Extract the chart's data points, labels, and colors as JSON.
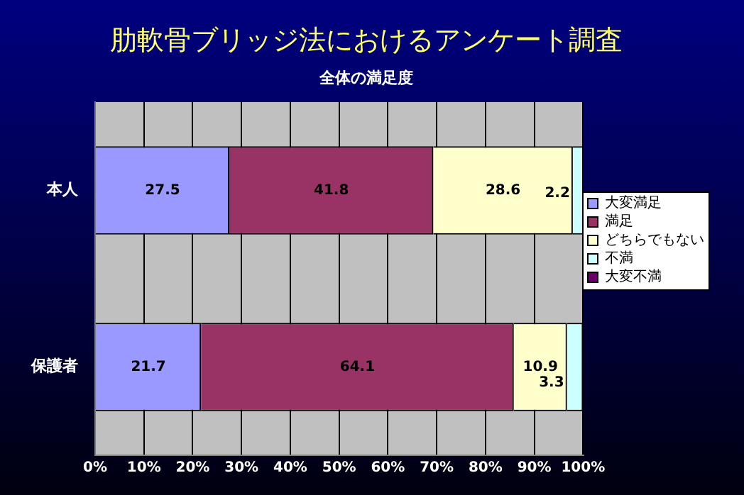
{
  "chart_data": {
    "type": "bar",
    "orientation": "horizontal",
    "stacked": true,
    "title": "肋軟骨ブリッジ法におけるアンケート調査",
    "subtitle": "全体の満足度",
    "categories": [
      "本人",
      "保護者"
    ],
    "series": [
      {
        "name": "大変満足",
        "color": "#9999ff",
        "values": [
          27.5,
          21.7
        ],
        "value_labels": [
          "27.5",
          "21.7"
        ]
      },
      {
        "name": "満足",
        "color": "#993366",
        "values": [
          41.8,
          64.1
        ],
        "value_labels": [
          "41.8",
          "64.1"
        ]
      },
      {
        "name": "どちらでもない",
        "color": "#ffffcc",
        "values": [
          28.6,
          10.9
        ],
        "value_labels": [
          "28.6",
          "10.9"
        ]
      },
      {
        "name": "不満",
        "color": "#ccffff",
        "values": [
          2.2,
          3.3
        ],
        "value_labels": [
          "2.2",
          "3.3"
        ]
      },
      {
        "name": "大変不満",
        "color": "#660066",
        "values": [
          null,
          null
        ]
      }
    ],
    "xlim": [
      0,
      100.1
    ],
    "xticks": [
      {
        "value": 0,
        "label": "0%"
      },
      {
        "value": 10,
        "label": "10%"
      },
      {
        "value": 20,
        "label": "20%"
      },
      {
        "value": 30,
        "label": "30%"
      },
      {
        "value": 40,
        "label": "40%"
      },
      {
        "value": 50,
        "label": "50%"
      },
      {
        "value": 60,
        "label": "60%"
      },
      {
        "value": 70,
        "label": "70%"
      },
      {
        "value": 80,
        "label": "80%"
      },
      {
        "value": 90,
        "label": "90%"
      },
      {
        "value": 100,
        "label": "100%"
      }
    ],
    "grid": "x",
    "legend": "right"
  }
}
